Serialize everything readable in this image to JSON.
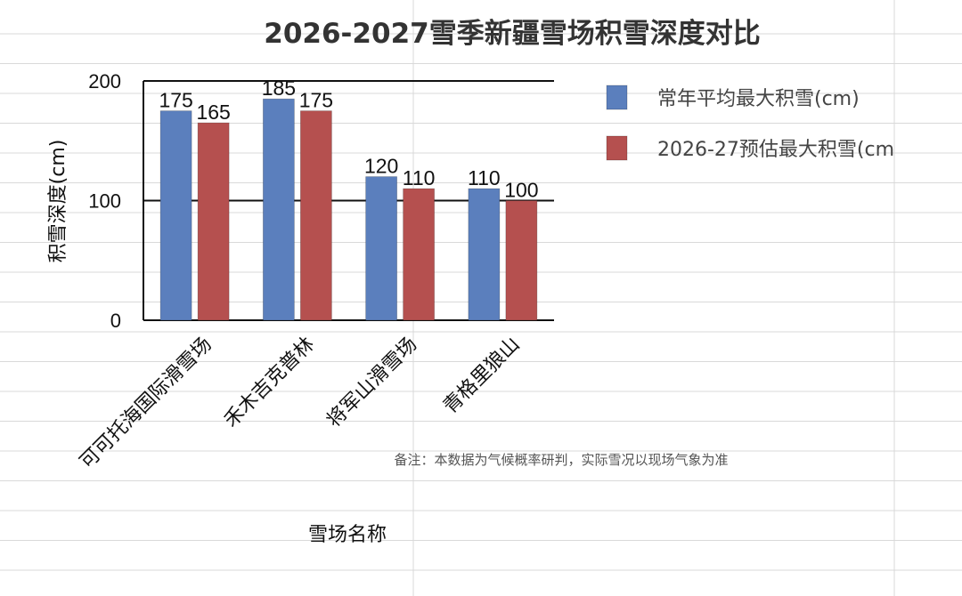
{
  "chart_data": {
    "type": "bar",
    "title": "2026-2027雪季新疆雪场积雪深度对比",
    "xlabel": "雪场名称",
    "ylabel": "积雪深度(cm)",
    "categories": [
      "可可托海国际滑雪场",
      "禾木吉克普林",
      "将军山滑雪场",
      "青格里狼山"
    ],
    "series": [
      {
        "name": "常年平均最大积雪(cm)",
        "values": [
          175,
          185,
          120,
          110
        ],
        "color": "#5b7fbd"
      },
      {
        "name": "2026-27预估最大积雪(cm",
        "values": [
          165,
          175,
          110,
          100
        ],
        "color": "#b5504f"
      }
    ],
    "ylim": [
      0,
      200
    ],
    "yticks": [
      0,
      100,
      200
    ],
    "legend_position": "right",
    "grid": "horizontal",
    "note": "备注：本数据为气候概率研判，实际雪况以现场气象为准"
  }
}
